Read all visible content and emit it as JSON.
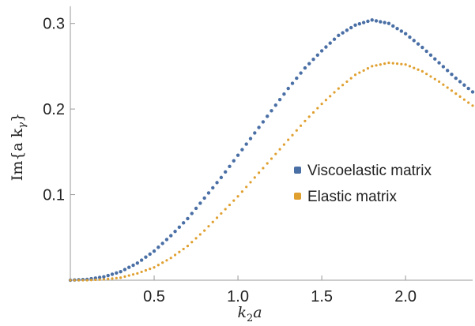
{
  "chart_data": {
    "type": "scatter",
    "xlabel_main": "k",
    "xlabel_sub": "2",
    "xlabel_tail": "a",
    "ylabel_text": "Im{a k",
    "ylabel_sub": "γ",
    "ylabel_close": "}",
    "xlim": [
      0.0,
      2.4
    ],
    "ylim": [
      0.0,
      0.32
    ],
    "x_ticks": [
      0.5,
      1.0,
      1.5,
      2.0
    ],
    "x_tick_labels": [
      "0.5",
      "1.0",
      "1.5",
      "2.0"
    ],
    "y_ticks": [
      0.1,
      0.2,
      0.3
    ],
    "y_tick_labels": [
      "0.1",
      "0.2",
      "0.3"
    ],
    "grid": false,
    "legend_placement": "center-right",
    "series": [
      {
        "name": "Viscoelastic matrix",
        "color": "#4a6fa5",
        "points": [
          [
            0.0,
            0.0
          ],
          [
            0.1,
            0.001
          ],
          [
            0.2,
            0.004
          ],
          [
            0.3,
            0.01
          ],
          [
            0.4,
            0.02
          ],
          [
            0.5,
            0.034
          ],
          [
            0.6,
            0.052
          ],
          [
            0.7,
            0.072
          ],
          [
            0.8,
            0.096
          ],
          [
            0.9,
            0.12
          ],
          [
            1.0,
            0.146
          ],
          [
            1.1,
            0.172
          ],
          [
            1.2,
            0.198
          ],
          [
            1.3,
            0.224
          ],
          [
            1.4,
            0.248
          ],
          [
            1.5,
            0.268
          ],
          [
            1.6,
            0.286
          ],
          [
            1.7,
            0.298
          ],
          [
            1.8,
            0.304
          ],
          [
            1.9,
            0.3
          ],
          [
            2.0,
            0.288
          ],
          [
            2.1,
            0.272
          ],
          [
            2.2,
            0.254
          ],
          [
            2.3,
            0.236
          ],
          [
            2.4,
            0.22
          ]
        ]
      },
      {
        "name": "Elastic matrix",
        "color": "#e0a030",
        "points": [
          [
            0.0,
            0.0
          ],
          [
            0.1,
            0.0
          ],
          [
            0.2,
            0.001
          ],
          [
            0.3,
            0.003
          ],
          [
            0.4,
            0.008
          ],
          [
            0.5,
            0.015
          ],
          [
            0.6,
            0.026
          ],
          [
            0.7,
            0.04
          ],
          [
            0.8,
            0.058
          ],
          [
            0.9,
            0.078
          ],
          [
            1.0,
            0.098
          ],
          [
            1.1,
            0.12
          ],
          [
            1.2,
            0.142
          ],
          [
            1.3,
            0.164
          ],
          [
            1.4,
            0.186
          ],
          [
            1.5,
            0.206
          ],
          [
            1.6,
            0.224
          ],
          [
            1.7,
            0.24
          ],
          [
            1.8,
            0.25
          ],
          [
            1.9,
            0.254
          ],
          [
            2.0,
            0.252
          ],
          [
            2.1,
            0.244
          ],
          [
            2.2,
            0.232
          ],
          [
            2.3,
            0.218
          ],
          [
            2.4,
            0.204
          ]
        ]
      }
    ]
  }
}
